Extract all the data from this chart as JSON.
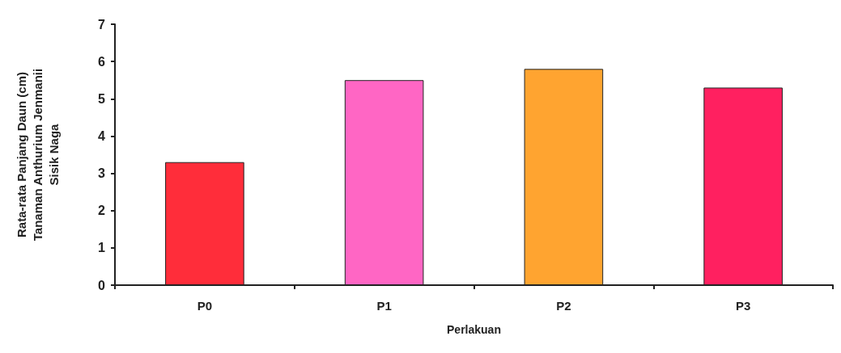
{
  "chart_data": {
    "type": "bar",
    "ylabel": "Rata-rata Panjang Daun (cm)\nTanaman Anthurium Jenmanii\nSisik Naga",
    "xlabel": "Perlakuan",
    "categories": [
      "P0",
      "P1",
      "P2",
      "P3"
    ],
    "values": [
      3.3,
      5.5,
      5.8,
      5.3
    ],
    "colors": [
      "#ff2d3a",
      "#ff66c4",
      "#ffa430",
      "#ff2060"
    ],
    "ylim": [
      0,
      7
    ],
    "yticks": [
      0,
      1,
      2,
      3,
      4,
      5,
      6,
      7
    ],
    "grid": false
  }
}
